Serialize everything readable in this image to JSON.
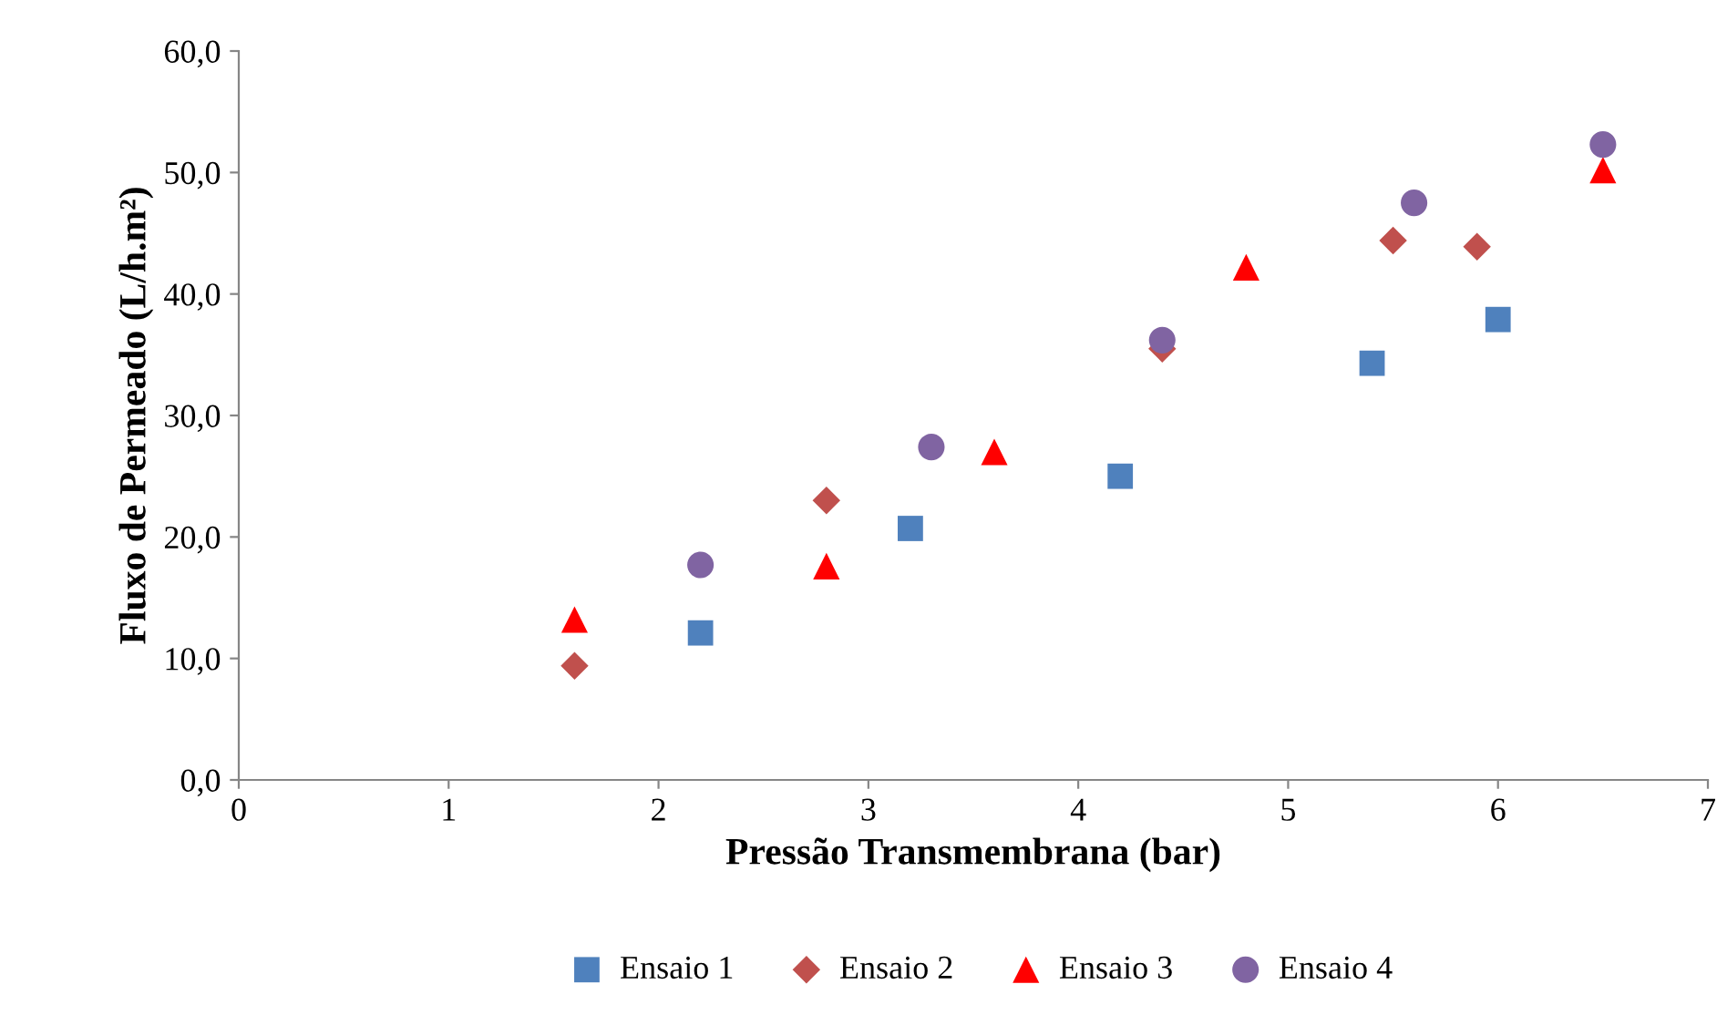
{
  "chart_data": {
    "type": "scatter",
    "xlabel": "Pressão Transmembrana (bar)",
    "ylabel": "Fluxo de Permeado (L/h.m²)",
    "xlim": [
      0,
      7
    ],
    "xticks": [
      0,
      1,
      2,
      3,
      4,
      5,
      6,
      7
    ],
    "ylim": [
      0,
      60
    ],
    "yticks": [
      {
        "value": 0,
        "label": "0,0"
      },
      {
        "value": 10,
        "label": "10,0"
      },
      {
        "value": 20,
        "label": "20,0"
      },
      {
        "value": 30,
        "label": "30,0"
      },
      {
        "value": 40,
        "label": "40,0"
      },
      {
        "value": 50,
        "label": "50,0"
      },
      {
        "value": 60,
        "label": "60,0"
      }
    ],
    "grid": false,
    "legend": "bottom",
    "series": [
      {
        "name": "Ensaio 1",
        "color": "#4f81bd",
        "marker": "square",
        "x": [
          2.2,
          3.2,
          4.2,
          5.4,
          6.0
        ],
        "values": [
          12.1,
          20.7,
          25.0,
          34.3,
          37.9
        ]
      },
      {
        "name": "Ensaio 2",
        "color": "#c0504d",
        "marker": "diamond",
        "x": [
          1.6,
          2.8,
          4.4,
          5.5,
          5.9
        ],
        "values": [
          9.4,
          23.0,
          35.5,
          44.4,
          43.9
        ]
      },
      {
        "name": "Ensaio 3",
        "color": "#ff0000",
        "marker": "triangle",
        "x": [
          1.6,
          2.8,
          3.6,
          4.8,
          6.5
        ],
        "values": [
          13.2,
          17.6,
          27.0,
          42.2,
          50.2
        ]
      },
      {
        "name": "Ensaio 4",
        "color": "#8064a2",
        "marker": "circle",
        "x": [
          2.2,
          3.3,
          4.4,
          5.6,
          6.5
        ],
        "values": [
          17.7,
          27.4,
          36.2,
          47.5,
          52.3
        ]
      }
    ]
  }
}
